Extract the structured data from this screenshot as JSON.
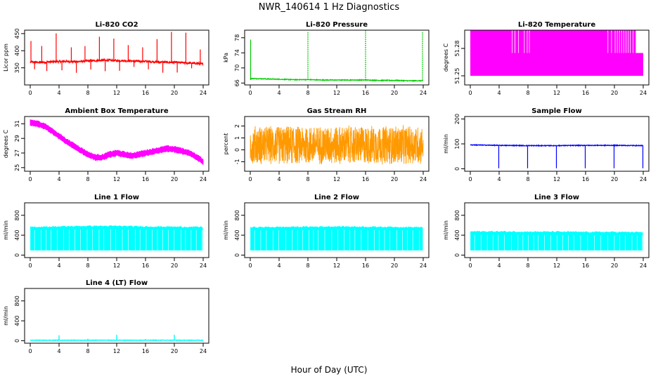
{
  "title": "NWR_140614  1 Hz Diagnostics",
  "xlabel": "Hour of Day (UTC)",
  "chart_data": [
    {
      "id": "co2",
      "type": "line",
      "title": "Li-820 CO2",
      "ylabel": "Licor ppm",
      "color": "#ff0000",
      "xlim": [
        0,
        24
      ],
      "ylim": [
        300,
        460
      ],
      "xticks": [
        0,
        4,
        8,
        12,
        16,
        20,
        24
      ],
      "yticks": [
        350,
        400,
        450
      ],
      "x": [
        0,
        1,
        2,
        3,
        4,
        5,
        6,
        7,
        8,
        9,
        10,
        11,
        12,
        13,
        14,
        15,
        16,
        17,
        18,
        19,
        20,
        21,
        22,
        23,
        24
      ],
      "y": [
        367,
        366,
        366,
        368,
        368,
        369,
        368,
        369,
        370,
        371,
        372,
        372,
        371,
        371,
        370,
        369,
        369,
        368,
        367,
        366,
        366,
        365,
        364,
        363,
        361
      ]
    },
    {
      "id": "pressure",
      "type": "line",
      "title": "Li-820 Pressure",
      "ylabel": "kPa",
      "color": "#00cc00",
      "xlim": [
        0,
        24
      ],
      "ylim": [
        65.5,
        80
      ],
      "xticks": [
        0,
        4,
        8,
        12,
        16,
        20,
        24
      ],
      "yticks": [
        66,
        70,
        74,
        78
      ],
      "x": [
        0,
        2,
        4,
        6,
        8,
        10,
        12,
        14,
        16,
        18,
        20,
        22,
        24
      ],
      "y": [
        67.2,
        67.1,
        67.0,
        66.9,
        66.9,
        66.8,
        66.8,
        66.8,
        66.8,
        66.7,
        66.7,
        66.6,
        66.6
      ]
    },
    {
      "id": "licor_temp",
      "type": "line",
      "title": "Li-820 Temperature",
      "ylabel": "degrees C",
      "color": "#ff00ff",
      "xlim": [
        0,
        24
      ],
      "ylim": [
        51.24,
        51.3
      ],
      "xticks": [
        0,
        4,
        8,
        12,
        16,
        20,
        24
      ],
      "yticks": [
        51.25,
        51.28
      ],
      "x": [
        0,
        4,
        8,
        12,
        16,
        20,
        24
      ],
      "y": [
        51.265,
        51.265,
        51.265,
        51.265,
        51.265,
        51.265,
        51.265
      ]
    },
    {
      "id": "box_temp",
      "type": "line",
      "title": "Ambient Box Temperature",
      "ylabel": "degrees C",
      "color": "#ff00ff",
      "xlim": [
        0,
        24
      ],
      "ylim": [
        24.5,
        32
      ],
      "xticks": [
        0,
        4,
        8,
        12,
        16,
        20,
        24
      ],
      "yticks": [
        25,
        27,
        29,
        31
      ],
      "x": [
        0,
        1,
        2,
        3,
        4,
        5,
        6,
        7,
        8,
        9,
        10,
        11,
        12,
        13,
        14,
        15,
        16,
        17,
        18,
        19,
        20,
        21,
        22,
        23,
        24
      ],
      "y": [
        31.2,
        31.0,
        30.7,
        30.0,
        29.3,
        28.6,
        28.0,
        27.4,
        26.8,
        26.4,
        26.4,
        26.8,
        27.0,
        26.8,
        26.6,
        26.8,
        27.0,
        27.2,
        27.4,
        27.6,
        27.5,
        27.3,
        27.0,
        26.5,
        25.8
      ]
    },
    {
      "id": "rh",
      "type": "line",
      "title": "Gas Stream RH",
      "ylabel": "percent",
      "color": "#ff9900",
      "xlim": [
        0,
        24
      ],
      "ylim": [
        -1.8,
        2.8
      ],
      "xticks": [
        0,
        4,
        8,
        12,
        16,
        20,
        24
      ],
      "yticks": [
        -1,
        0,
        1,
        2
      ],
      "x": [
        0,
        4,
        8,
        12,
        16,
        20,
        24
      ],
      "y": [
        0.4,
        0.4,
        0.4,
        0.4,
        0.4,
        0.4,
        0.4
      ]
    },
    {
      "id": "sample_flow",
      "type": "line",
      "title": "Sample Flow",
      "ylabel": "ml/min",
      "color": "#0000ff",
      "xlim": [
        0,
        24
      ],
      "ylim": [
        -10,
        210
      ],
      "xticks": [
        0,
        4,
        8,
        12,
        16,
        20,
        24
      ],
      "yticks": [
        0,
        100,
        200
      ],
      "x": [
        0,
        4,
        8,
        12,
        16,
        20,
        24
      ],
      "y": [
        96,
        94,
        93,
        93,
        94,
        94,
        93
      ]
    },
    {
      "id": "line1",
      "type": "area",
      "title": "Line 1 Flow",
      "ylabel": "ml/min",
      "color": "#00ffff",
      "xlim": [
        0,
        24
      ],
      "ylim": [
        -50,
        1050
      ],
      "xticks": [
        0,
        4,
        8,
        12,
        16,
        20,
        24
      ],
      "yticks": [
        0,
        400,
        800
      ],
      "x": [
        0,
        4,
        8,
        12,
        16,
        20,
        24
      ],
      "y": [
        560,
        570,
        580,
        580,
        570,
        565,
        560
      ]
    },
    {
      "id": "line2",
      "type": "area",
      "title": "Line 2 Flow",
      "ylabel": "ml/min",
      "color": "#00ffff",
      "xlim": [
        0,
        24
      ],
      "ylim": [
        -50,
        1050
      ],
      "xticks": [
        0,
        4,
        8,
        12,
        16,
        20,
        24
      ],
      "yticks": [
        0,
        400,
        800
      ],
      "x": [
        0,
        4,
        8,
        12,
        16,
        20,
        24
      ],
      "y": [
        555,
        560,
        565,
        570,
        565,
        560,
        555
      ]
    },
    {
      "id": "line3",
      "type": "area",
      "title": "Line 3 Flow",
      "ylabel": "ml/min",
      "color": "#00ffff",
      "xlim": [
        0,
        24
      ],
      "ylim": [
        -50,
        1050
      ],
      "xticks": [
        0,
        4,
        8,
        12,
        16,
        20,
        24
      ],
      "yticks": [
        0,
        400,
        800
      ],
      "x": [
        0,
        4,
        8,
        12,
        16,
        20,
        24
      ],
      "y": [
        470,
        470,
        465,
        465,
        460,
        460,
        455
      ]
    },
    {
      "id": "line4",
      "type": "line",
      "title": "Line 4 (LT) Flow",
      "ylabel": "ml/min",
      "color": "#00ffff",
      "xlim": [
        0,
        24
      ],
      "ylim": [
        -50,
        1050
      ],
      "xticks": [
        0,
        4,
        8,
        12,
        16,
        20,
        24
      ],
      "yticks": [
        0,
        400,
        800
      ],
      "x": [
        0,
        4,
        8,
        12,
        16,
        20,
        24
      ],
      "y": [
        10,
        10,
        10,
        10,
        10,
        10,
        10
      ]
    }
  ]
}
